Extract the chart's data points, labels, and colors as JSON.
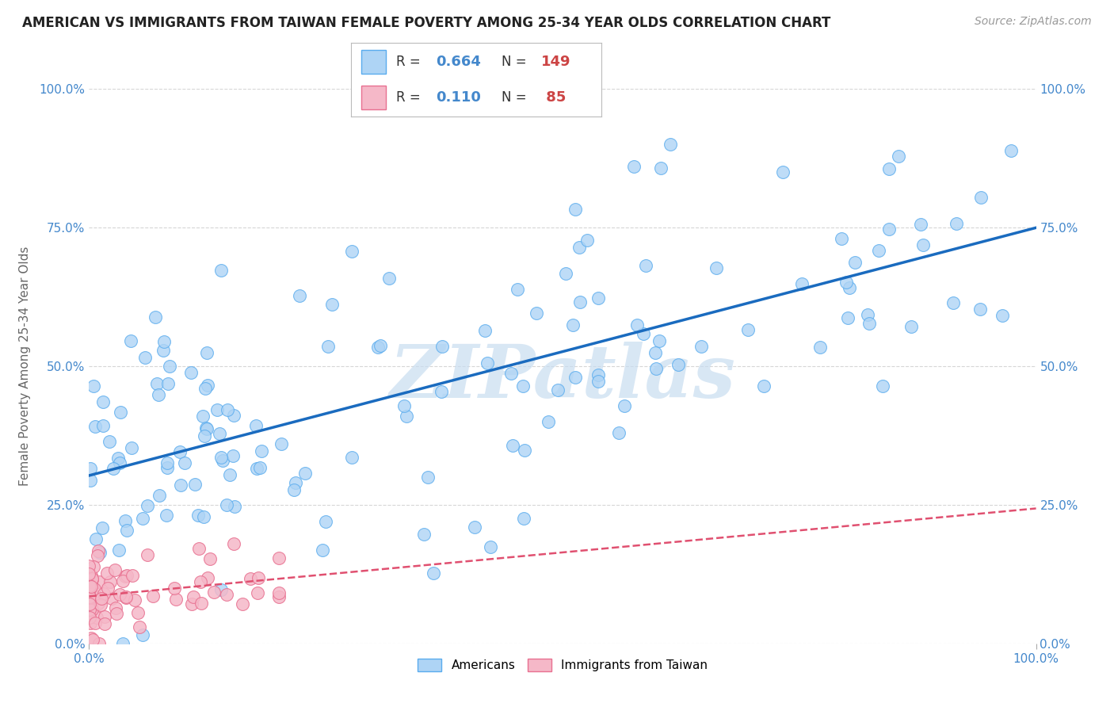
{
  "title": "AMERICAN VS IMMIGRANTS FROM TAIWAN FEMALE POVERTY AMONG 25-34 YEAR OLDS CORRELATION CHART",
  "source": "Source: ZipAtlas.com",
  "ylabel": "Female Poverty Among 25-34 Year Olds",
  "xlim": [
    0.0,
    1.0
  ],
  "ylim": [
    0.0,
    1.0
  ],
  "xtick_positions": [
    0.0,
    1.0
  ],
  "xtick_labels": [
    "0.0%",
    "100.0%"
  ],
  "ytick_positions": [
    0.0,
    0.25,
    0.5,
    0.75,
    1.0
  ],
  "ytick_labels": [
    "0.0%",
    "25.0%",
    "50.0%",
    "75.0%",
    "100.0%"
  ],
  "americans": {
    "R": 0.664,
    "N": 149,
    "color": "#aed4f5",
    "edge_color": "#5aacee",
    "line_color": "#1a6bbf",
    "label": "Americans"
  },
  "taiwan": {
    "R": 0.11,
    "N": 85,
    "color": "#f5b8c8",
    "edge_color": "#e87090",
    "line_color": "#e05070",
    "label": "Immigrants from Taiwan"
  },
  "watermark": "ZIPatlas",
  "watermark_color": "#c8ddf0",
  "background_color": "#ffffff",
  "grid_color": "#cccccc",
  "title_fontsize": 12,
  "source_fontsize": 10,
  "tick_fontsize": 11,
  "ylabel_fontsize": 11,
  "tick_color": "#4488cc",
  "ylabel_color": "#666666"
}
